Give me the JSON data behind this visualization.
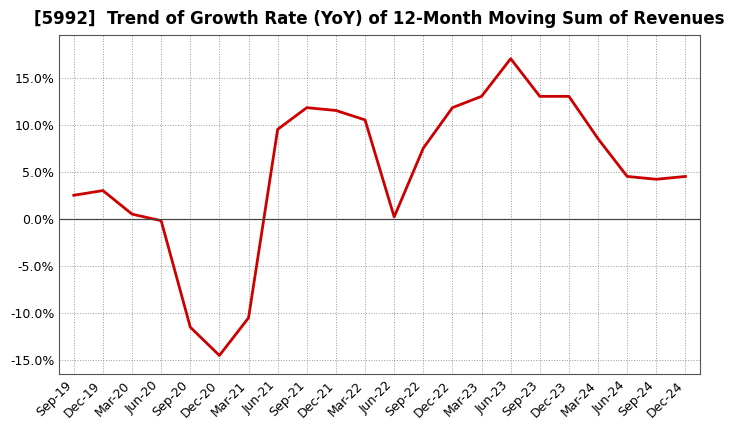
{
  "title": "[5992]  Trend of Growth Rate (YoY) of 12-Month Moving Sum of Revenues",
  "x_labels": [
    "Sep-19",
    "Dec-19",
    "Mar-20",
    "Jun-20",
    "Sep-20",
    "Dec-20",
    "Mar-21",
    "Jun-21",
    "Sep-21",
    "Dec-21",
    "Mar-22",
    "Jun-22",
    "Sep-22",
    "Dec-22",
    "Mar-23",
    "Jun-23",
    "Sep-23",
    "Dec-23",
    "Mar-24",
    "Jun-24",
    "Sep-24",
    "Dec-24"
  ],
  "y_values": [
    2.5,
    3.0,
    0.5,
    -0.2,
    -11.5,
    -14.5,
    -10.5,
    9.5,
    11.8,
    11.5,
    10.5,
    0.2,
    7.5,
    11.8,
    13.0,
    17.0,
    13.0,
    13.0,
    8.5,
    4.5,
    4.2,
    4.5
  ],
  "line_color": "#cc0000",
  "line_width": 2.0,
  "ylim": [
    -16.5,
    19.5
  ],
  "yticks": [
    -15.0,
    -10.0,
    -5.0,
    0.0,
    5.0,
    10.0,
    15.0
  ],
  "grid_color": "#999999",
  "bg_color": "#ffffff",
  "title_fontsize": 12,
  "tick_fontsize": 9,
  "spine_color": "#555555"
}
